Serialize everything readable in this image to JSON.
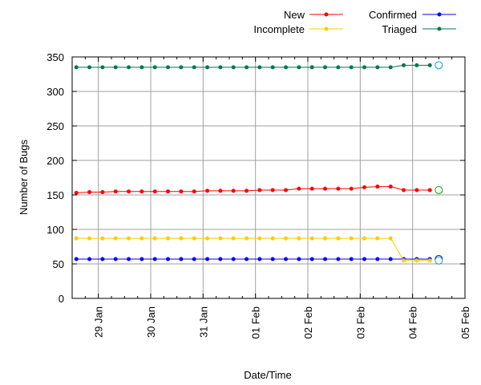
{
  "chart_data": {
    "type": "line",
    "title": "",
    "xlabel": "Date/Time",
    "ylabel": "Number of Bugs",
    "ylim": [
      0,
      350
    ],
    "yticks": [
      0,
      50,
      100,
      150,
      200,
      250,
      300,
      350
    ],
    "xlim": [
      28.5,
      36.0
    ],
    "xtick_labels": [
      {
        "label": "29 Jan",
        "value": 29
      },
      {
        "label": "30 Jan",
        "value": 30
      },
      {
        "label": "31 Jan",
        "value": 31
      },
      {
        "label": "01 Feb",
        "value": 32
      },
      {
        "label": "02 Feb",
        "value": 33
      },
      {
        "label": "03 Feb",
        "value": 34
      },
      {
        "label": "04 Feb",
        "value": 35
      },
      {
        "label": "05 Feb",
        "value": 36
      }
    ],
    "grid": true,
    "legend_position": "top-right",
    "x": [
      28.58,
      28.83,
      29.08,
      29.33,
      29.58,
      29.83,
      30.08,
      30.33,
      30.58,
      30.83,
      31.08,
      31.33,
      31.58,
      31.83,
      32.08,
      32.33,
      32.58,
      32.83,
      33.08,
      33.33,
      33.58,
      33.83,
      34.08,
      34.33,
      34.58,
      34.83,
      35.08,
      35.33
    ],
    "series": [
      {
        "name": "New",
        "color": "#ff0000",
        "values": [
          153,
          154,
          154,
          155,
          155,
          155,
          155,
          155,
          155,
          155,
          156,
          156,
          156,
          156,
          157,
          157,
          157,
          159,
          159,
          159,
          159,
          159,
          161,
          162,
          162,
          157,
          157,
          157
        ],
        "open_marker": {
          "x": 35.5,
          "value": 157,
          "color": "#00a000"
        }
      },
      {
        "name": "Confirmed",
        "color": "#0000ff",
        "values": [
          57,
          57,
          57,
          57,
          57,
          57,
          57,
          57,
          57,
          57,
          57,
          57,
          57,
          57,
          57,
          57,
          57,
          57,
          57,
          57,
          57,
          57,
          57,
          57,
          57,
          57,
          57,
          57
        ],
        "open_marker": {
          "x": 35.5,
          "value": 57,
          "color": "#0000ff"
        }
      },
      {
        "name": "Incomplete",
        "color": "#ffcc00",
        "values": [
          87,
          87,
          87,
          87,
          87,
          87,
          87,
          87,
          87,
          87,
          87,
          87,
          87,
          87,
          87,
          87,
          87,
          87,
          87,
          87,
          87,
          87,
          87,
          87,
          87,
          55,
          55,
          55
        ],
        "open_marker": {
          "x": 35.5,
          "value": 55,
          "color": "#00a0d0"
        }
      },
      {
        "name": "Triaged",
        "color": "#00784a",
        "values": [
          335,
          335,
          335,
          335,
          335,
          335,
          335,
          335,
          335,
          335,
          335,
          335,
          335,
          335,
          335,
          335,
          335,
          335,
          335,
          335,
          335,
          335,
          335,
          335,
          335,
          338,
          338,
          338
        ],
        "open_marker": {
          "x": 35.5,
          "value": 338,
          "color": "#00a0d0"
        }
      }
    ]
  }
}
